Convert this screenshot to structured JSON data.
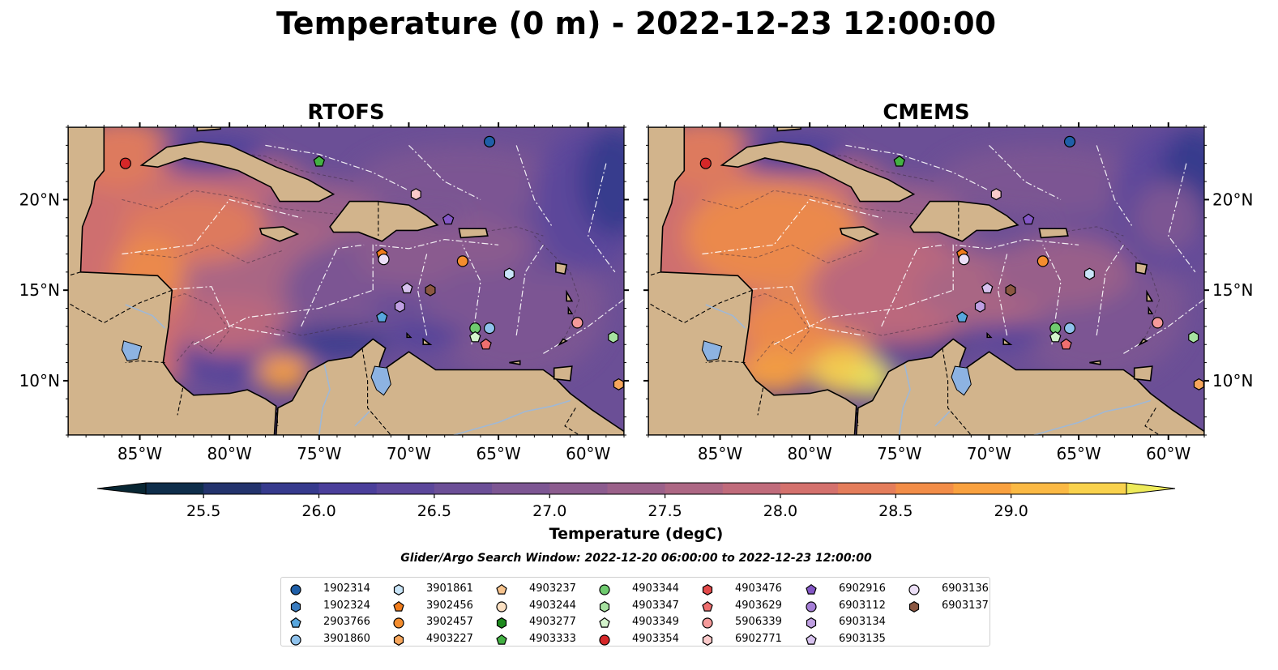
{
  "title": "Temperature (0 m) - 2022-12-23 12:00:00",
  "panels": [
    {
      "title": "RTOFS"
    },
    {
      "title": "CMEMS"
    }
  ],
  "colorbar": {
    "label": "Temperature (degC)",
    "ticks": [
      "25.5",
      "26.0",
      "26.5",
      "27.0",
      "27.5",
      "28.0",
      "28.5",
      "29.0"
    ],
    "colors": [
      "#082633",
      "#0f2e4b",
      "#23336d",
      "#363a8d",
      "#4b3f9b",
      "#5c479b",
      "#6c4f97",
      "#7d5693",
      "#8c5c8f",
      "#9b618a",
      "#ad6784",
      "#c06b7b",
      "#d4716d",
      "#e47d5b",
      "#f28d48",
      "#f9a13f",
      "#fbb944",
      "#f9d24d",
      "#eeeb5a"
    ]
  },
  "search_window": "Glider/Argo Search Window: 2022-12-20 06:00:00 to 2022-12-23 12:00:00",
  "chart_data": {
    "type": "scatter",
    "xlabel": "",
    "ylabel": "",
    "x_ticks": [
      "85°W",
      "80°W",
      "75°W",
      "70°W",
      "65°W",
      "60°W"
    ],
    "y_ticks": [
      "20°N",
      "15°N",
      "10°N"
    ],
    "xlim": [
      -89,
      -58
    ],
    "ylim": [
      7,
      24
    ],
    "colormap_range": [
      25.25,
      29.5
    ],
    "series": [
      {
        "name": "1902314",
        "marker": "circle",
        "color": "#1f5fa8",
        "points": [
          [
            -65.5,
            23.2
          ]
        ]
      },
      {
        "name": "1902324",
        "marker": "hexagon",
        "color": "#3a7cc0",
        "points": []
      },
      {
        "name": "2903766",
        "marker": "pentagon",
        "color": "#58a6dd",
        "points": [
          [
            -71.5,
            13.5
          ]
        ]
      },
      {
        "name": "3901860",
        "marker": "circle",
        "color": "#8fc2ec",
        "points": [
          [
            -65.5,
            12.9
          ]
        ]
      },
      {
        "name": "3901861",
        "marker": "hexagon",
        "color": "#c9e5f8",
        "points": [
          [
            -64.4,
            15.9
          ]
        ]
      },
      {
        "name": "3902456",
        "marker": "pentagon",
        "color": "#f07c1c",
        "points": [
          [
            -71.5,
            17.0
          ]
        ]
      },
      {
        "name": "3902457",
        "marker": "circle",
        "color": "#f48d2e",
        "points": [
          [
            -67.0,
            16.6
          ]
        ]
      },
      {
        "name": "4903227",
        "marker": "hexagon",
        "color": "#f7a65c",
        "points": [
          [
            -58.3,
            9.8
          ]
        ]
      },
      {
        "name": "4903237",
        "marker": "pentagon",
        "color": "#f8c48e",
        "points": []
      },
      {
        "name": "4903244",
        "marker": "circle",
        "color": "#fbe0c2",
        "points": []
      },
      {
        "name": "4903277",
        "marker": "hexagon",
        "color": "#1e8a1e",
        "points": []
      },
      {
        "name": "4903333",
        "marker": "pentagon",
        "color": "#43b143",
        "points": [
          [
            -75.0,
            22.1
          ]
        ]
      },
      {
        "name": "4903344",
        "marker": "circle",
        "color": "#6fcb6f",
        "points": [
          [
            -66.3,
            12.9
          ]
        ]
      },
      {
        "name": "4903347",
        "marker": "hexagon",
        "color": "#a6e2a0",
        "points": [
          [
            -58.6,
            12.4
          ]
        ]
      },
      {
        "name": "4903349",
        "marker": "pentagon",
        "color": "#d3f3cb",
        "points": [
          [
            -66.3,
            12.4
          ]
        ]
      },
      {
        "name": "4903354",
        "marker": "circle",
        "color": "#d62728",
        "points": [
          [
            -85.8,
            22.0
          ]
        ]
      },
      {
        "name": "4903476",
        "marker": "hexagon",
        "color": "#e44a4a",
        "points": []
      },
      {
        "name": "4903629",
        "marker": "pentagon",
        "color": "#ef6f6f",
        "points": [
          [
            -65.7,
            12.0
          ]
        ]
      },
      {
        "name": "5906339",
        "marker": "circle",
        "color": "#f59a9a",
        "points": [
          [
            -60.6,
            13.2
          ]
        ]
      },
      {
        "name": "6902771",
        "marker": "hexagon",
        "color": "#fbcaca",
        "points": [
          [
            -69.6,
            20.3
          ]
        ]
      },
      {
        "name": "6902916",
        "marker": "pentagon",
        "color": "#8457c6",
        "points": [
          [
            -67.8,
            18.9
          ]
        ]
      },
      {
        "name": "6903112",
        "marker": "circle",
        "color": "#a57ed6",
        "points": []
      },
      {
        "name": "6903134",
        "marker": "hexagon",
        "color": "#bf9fe2",
        "points": [
          [
            -70.5,
            14.1
          ]
        ]
      },
      {
        "name": "6903135",
        "marker": "pentagon",
        "color": "#d7c2ee",
        "points": [
          [
            -70.1,
            15.1
          ]
        ]
      },
      {
        "name": "6903136",
        "marker": "circle",
        "color": "#ecdff7",
        "points": [
          [
            -71.4,
            16.7
          ]
        ]
      },
      {
        "name": "6903137",
        "marker": "hexagon",
        "color": "#8b5742",
        "points": [
          [
            -68.8,
            15.0
          ]
        ]
      }
    ]
  },
  "colors": {
    "land": "#d2b48c",
    "water_base": "#6b4f96",
    "lakes": "#8db3e2"
  }
}
